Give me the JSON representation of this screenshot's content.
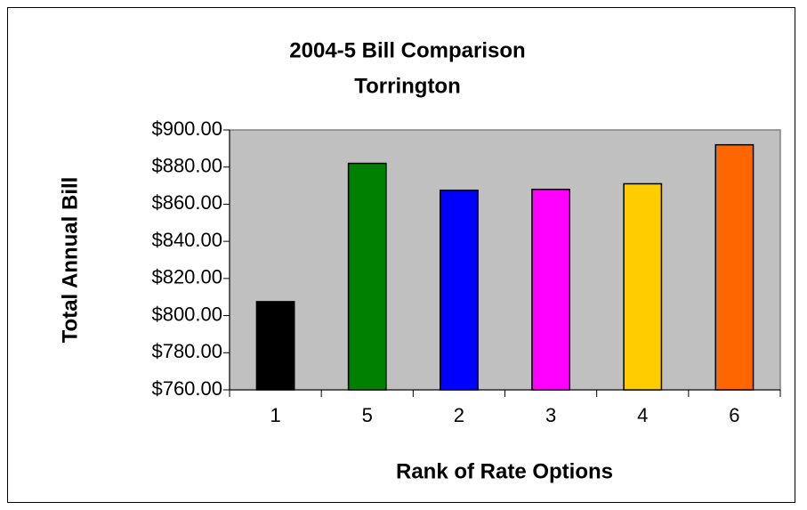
{
  "chart_data": {
    "type": "bar",
    "title": "2004-5 Bill Comparison",
    "subtitle": "Torrington",
    "xlabel": "Rank of Rate Options",
    "ylabel": "Total Annual Bill",
    "categories": [
      "1",
      "5",
      "2",
      "3",
      "4",
      "6"
    ],
    "values": [
      807.5,
      882,
      867.5,
      868,
      871,
      892
    ],
    "colors": [
      "#000000",
      "#008000",
      "#0000ff",
      "#ff00ff",
      "#ffcc00",
      "#ff6600"
    ],
    "ylim": [
      760,
      900
    ],
    "yticks": [
      {
        "value": 760,
        "label": "$760.00"
      },
      {
        "value": 780,
        "label": "$780.00"
      },
      {
        "value": 800,
        "label": "$800.00"
      },
      {
        "value": 820,
        "label": "$820.00"
      },
      {
        "value": 840,
        "label": "$840.00"
      },
      {
        "value": 860,
        "label": "$860.00"
      },
      {
        "value": 880,
        "label": "$880.00"
      },
      {
        "value": 900,
        "label": "$900.00"
      }
    ],
    "grid": false
  }
}
